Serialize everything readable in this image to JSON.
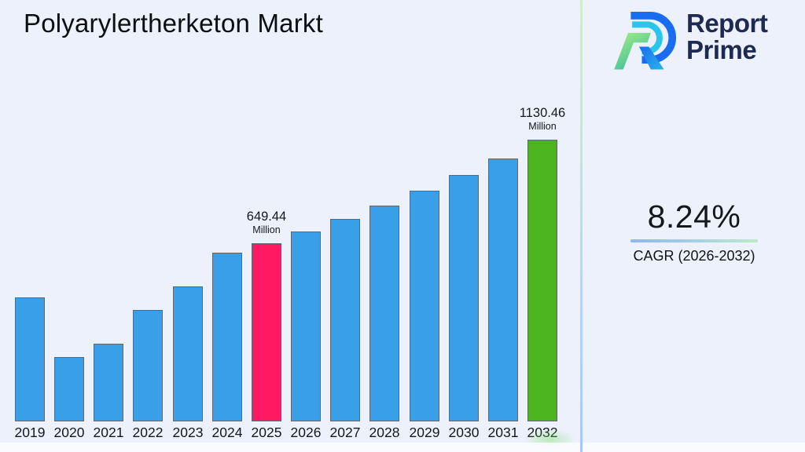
{
  "page": {
    "title": "Polyarylertherketon Markt"
  },
  "logo": {
    "line1": "Report",
    "line2": "Prime",
    "text_color": "#1e2a52"
  },
  "cagr": {
    "value": "8.24%",
    "label": "CAGR (2026-2032)"
  },
  "chart_data": {
    "type": "bar",
    "title": "Polyarylertherketon Markt",
    "unit": "Million",
    "categories": [
      "2019",
      "2020",
      "2021",
      "2022",
      "2023",
      "2024",
      "2025",
      "2026",
      "2027",
      "2028",
      "2029",
      "2030",
      "2031",
      "2032"
    ],
    "values": [
      398,
      121,
      183,
      340,
      449,
      606,
      649.44,
      702.96,
      760.88,
      823.58,
      891.44,
      964.9,
      1044.41,
      1130.46
    ],
    "ylim": [
      -178,
      1243
    ],
    "grid": false,
    "legend": false,
    "colors": {
      "default": "#389fe8",
      "highlight_2025": "#fd1a62",
      "highlight_2032": "#4cb41f"
    },
    "highlights": [
      {
        "index": 6,
        "color": "#fd1a62"
      },
      {
        "index": 13,
        "color": "#4cb41f"
      }
    ],
    "annotations": [
      {
        "index": 6,
        "line1": "649.44",
        "line2": "Million"
      },
      {
        "index": 13,
        "line1": "1130.46",
        "line2": "Million"
      }
    ]
  }
}
